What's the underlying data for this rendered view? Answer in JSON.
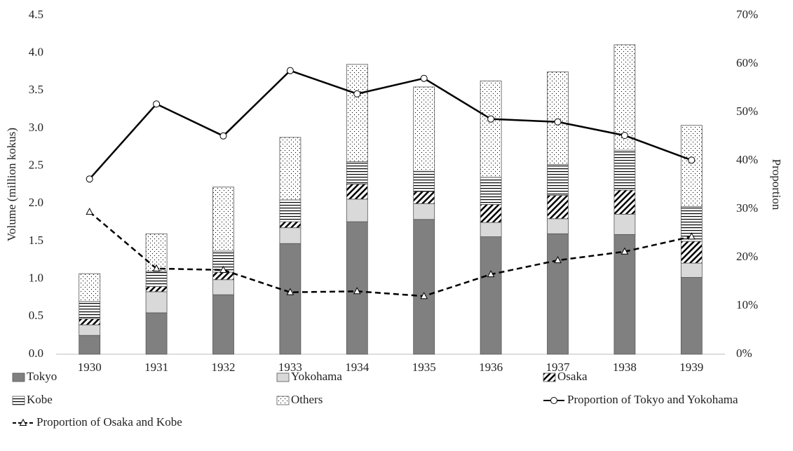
{
  "chart_data": {
    "type": "bar",
    "y_label": "Volume (million kokus)",
    "y2_label": "Proportion",
    "categories": [
      "1930",
      "1931",
      "1932",
      "1933",
      "1934",
      "1935",
      "1936",
      "1937",
      "1938",
      "1939"
    ],
    "ylim": [
      0,
      4.5
    ],
    "yticks": [
      {
        "value": 0,
        "label": "0.0"
      },
      0.5,
      {
        "value": 1,
        "label": "1.0"
      },
      1.5,
      {
        "value": 2,
        "label": "2.0"
      },
      2.5,
      {
        "value": 3,
        "label": "3.0"
      },
      3.5,
      {
        "value": 4,
        "label": "4.0"
      },
      4.5
    ],
    "y2lim": [
      0,
      70
    ],
    "y2ticks": [
      {
        "value": 0,
        "label": "0%"
      },
      {
        "value": 10,
        "label": "10%"
      },
      {
        "value": 20,
        "label": "20%"
      },
      {
        "value": 30,
        "label": "30%"
      },
      {
        "value": 40,
        "label": "40%"
      },
      {
        "value": 50,
        "label": "50%"
      },
      {
        "value": 60,
        "label": "60%"
      },
      {
        "value": 70,
        "label": "70%"
      }
    ],
    "grid": false,
    "series": [
      {
        "name": "Tokyo",
        "color": "#808080",
        "pattern": "solid",
        "values": [
          0.25,
          0.55,
          0.79,
          1.47,
          1.76,
          1.79,
          1.56,
          1.6,
          1.59,
          1.02
        ]
      },
      {
        "name": "Yokohama",
        "color": "#d9d9d9",
        "pattern": "solid",
        "values": [
          0.14,
          0.28,
          0.2,
          0.21,
          0.3,
          0.21,
          0.19,
          0.2,
          0.27,
          0.19
        ]
      },
      {
        "name": "Osaka",
        "color": "#000000",
        "pattern": "diagonal",
        "values": [
          0.08,
          0.07,
          0.1,
          0.08,
          0.2,
          0.16,
          0.24,
          0.31,
          0.32,
          0.29
        ]
      },
      {
        "name": "Kobe",
        "color": "#000000",
        "pattern": "horizontal",
        "values": [
          0.23,
          0.2,
          0.28,
          0.29,
          0.3,
          0.27,
          0.36,
          0.41,
          0.53,
          0.46
        ]
      },
      {
        "name": "Others",
        "color": "#000000",
        "pattern": "dots",
        "values": [
          0.37,
          0.5,
          0.85,
          0.83,
          1.29,
          1.12,
          1.28,
          1.23,
          1.4,
          1.08
        ]
      },
      {
        "name": "Proportion of Tokyo and Yokohama",
        "type": "line",
        "axis": "y2",
        "color": "#000000",
        "dash": false,
        "marker": "circle",
        "values": [
          36.2,
          51.7,
          45.1,
          58.6,
          53.8,
          57.0,
          48.6,
          48.0,
          45.2,
          40.1
        ]
      },
      {
        "name": "Proportion of Osaka and Kobe",
        "type": "line",
        "axis": "y2",
        "color": "#000000",
        "dash": true,
        "marker": "triangle",
        "values": [
          29.4,
          17.7,
          17.4,
          12.8,
          13.0,
          12.0,
          16.5,
          19.4,
          21.2,
          24.3
        ]
      }
    ]
  }
}
